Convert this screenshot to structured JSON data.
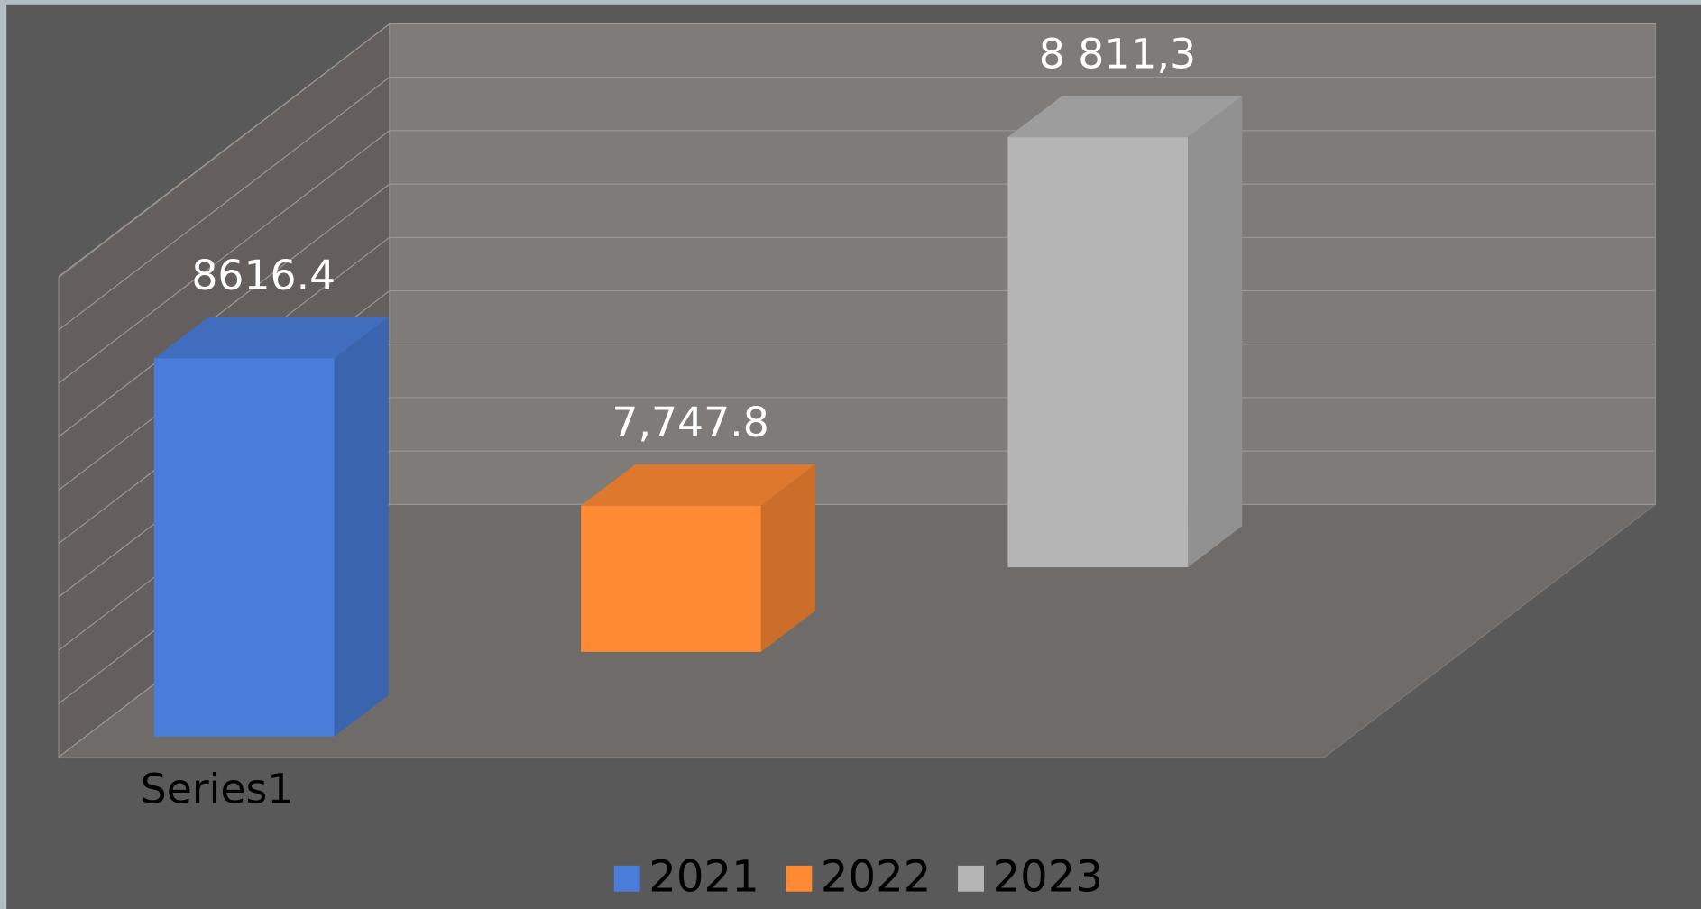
{
  "chart_data": {
    "type": "bar3d",
    "categories": [
      "Series1"
    ],
    "series": [
      {
        "name": "2021",
        "color": "#4a7dd9",
        "values": [
          8616.4
        ]
      },
      {
        "name": "2022",
        "color": "#ff8a33",
        "values": [
          7747.8
        ],
        "value_labels": [
          "7,747.8"
        ]
      },
      {
        "name": "2023",
        "color": "#b5b5b5",
        "values": [
          8811.3
        ],
        "value_labels": [
          "8 811,3"
        ]
      }
    ],
    "ylim": [
      7200,
      9000
    ],
    "yticks": [
      7200,
      7400,
      7600,
      7800,
      8000,
      8200,
      8400,
      8600,
      8800,
      9000
    ],
    "grid": true,
    "legend": "bottom"
  }
}
